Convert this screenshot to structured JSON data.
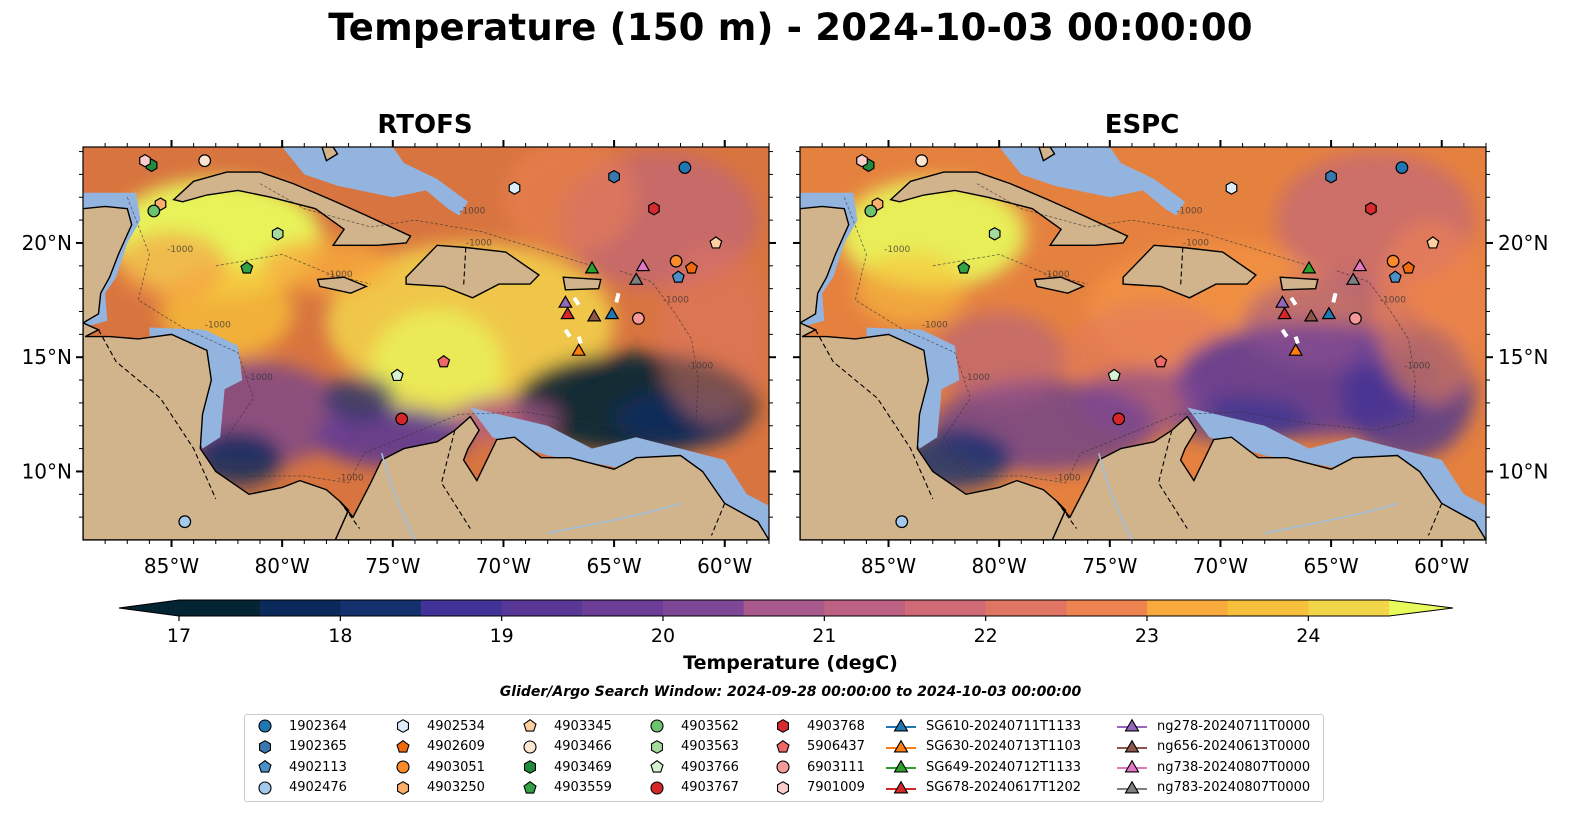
{
  "title": "Temperature (150 m) - 2024-10-03 00:00:00",
  "panels": [
    {
      "title": "RTOFS"
    },
    {
      "title": "ESPC"
    }
  ],
  "map": {
    "lon_range": [
      -89,
      -58
    ],
    "lat_range": [
      7,
      24.2
    ],
    "lon_ticks": [
      -85,
      -80,
      -75,
      -70,
      -65,
      -60
    ],
    "lon_tick_labels": [
      "85°W",
      "80°W",
      "75°W",
      "70°W",
      "65°W",
      "60°W"
    ],
    "lat_ticks": [
      10,
      15,
      20
    ],
    "lat_tick_labels": [
      "10°N",
      "15°N",
      "20°N"
    ],
    "land_color": "#d2b48c",
    "shelf_color": "#94b4e0",
    "contour_label": "-1000"
  },
  "colorbar": {
    "min": 17,
    "max": 24.5,
    "ticks": [
      17,
      18,
      19,
      20,
      21,
      22,
      23,
      24
    ],
    "tick_labels": [
      "17",
      "18",
      "19",
      "20",
      "21",
      "22",
      "23",
      "24"
    ],
    "label": "Temperature (degC)",
    "colors": [
      "#042333",
      "#0b2a5c",
      "#14306f",
      "#2c3395",
      "#403296",
      "#583796",
      "#6c3e97",
      "#7f4896",
      "#945193",
      "#a95a8d",
      "#bd6283",
      "#d06a76",
      "#e07563",
      "#ee8451",
      "#f59645",
      "#f8aa3c",
      "#f8bf3a",
      "#f3d54a",
      "#e8fa5b"
    ]
  },
  "search_window": "Glider/Argo Search Window: 2024-09-28 00:00:00 to 2024-10-03 00:00:00",
  "legend": [
    {
      "label": "1902364",
      "marker": "circle",
      "color": "#1f77b4"
    },
    {
      "label": "1902365",
      "marker": "hexagon",
      "color": "#3a78b0"
    },
    {
      "label": "4902113",
      "marker": "pentagon",
      "color": "#4b8fc7"
    },
    {
      "label": "4902476",
      "marker": "circle",
      "color": "#a3c9ec"
    },
    {
      "label": "4902534",
      "marker": "hexagon",
      "color": "#dcecfa"
    },
    {
      "label": "4902609",
      "marker": "pentagon",
      "color": "#f06b0e"
    },
    {
      "label": "4903051",
      "marker": "circle",
      "color": "#fb8b2a"
    },
    {
      "label": "4903250",
      "marker": "hexagon",
      "color": "#fcae6b"
    },
    {
      "label": "4903345",
      "marker": "pentagon",
      "color": "#fdd0a2"
    },
    {
      "label": "4903466",
      "marker": "circle",
      "color": "#fde6cf"
    },
    {
      "label": "4903469",
      "marker": "hexagon",
      "color": "#218a3c"
    },
    {
      "label": "4903559",
      "marker": "pentagon",
      "color": "#33a246"
    },
    {
      "label": "4903562",
      "marker": "circle",
      "color": "#6bc36d"
    },
    {
      "label": "4903563",
      "marker": "hexagon",
      "color": "#a6db9e"
    },
    {
      "label": "4903766",
      "marker": "pentagon",
      "color": "#d8f1d1"
    },
    {
      "label": "4903767",
      "marker": "circle",
      "color": "#d62728"
    },
    {
      "label": "4903768",
      "marker": "hexagon",
      "color": "#d72a2e"
    },
    {
      "label": "5906437",
      "marker": "pentagon",
      "color": "#f06868"
    },
    {
      "label": "6903111",
      "marker": "circle",
      "color": "#f69999"
    },
    {
      "label": "7901009",
      "marker": "hexagon",
      "color": "#fbcccc"
    },
    {
      "label": "SG610-20240711T1133",
      "marker": "triangle",
      "color": "#1f77b4"
    },
    {
      "label": "SG630-20240713T1103",
      "marker": "triangle",
      "color": "#ff7f0e"
    },
    {
      "label": "SG649-20240712T1133",
      "marker": "triangle",
      "color": "#2ca02c"
    },
    {
      "label": "SG678-20240617T1202",
      "marker": "triangle",
      "color": "#d62728"
    },
    {
      "label": "ng278-20240711T0000",
      "marker": "triangle",
      "color": "#9467bd"
    },
    {
      "label": "ng656-20240613T0000",
      "marker": "triangle",
      "color": "#8c564b"
    },
    {
      "label": "ng738-20240807T0000",
      "marker": "triangle",
      "color": "#e377c2"
    },
    {
      "label": "ng783-20240807T0000",
      "marker": "triangle",
      "color": "#7f7f7f"
    }
  ],
  "observations": [
    {
      "id": "1902364",
      "lon": -61.8,
      "lat": 23.3
    },
    {
      "id": "1902365",
      "lon": -65.0,
      "lat": 22.9
    },
    {
      "id": "4902113",
      "lon": -62.1,
      "lat": 18.5
    },
    {
      "id": "4902476",
      "lon": -84.4,
      "lat": 7.8
    },
    {
      "id": "4902534",
      "lon": -69.5,
      "lat": 22.4
    },
    {
      "id": "4902609",
      "lon": -61.5,
      "lat": 18.9
    },
    {
      "id": "4903051",
      "lon": -62.2,
      "lat": 19.2
    },
    {
      "id": "4903250",
      "lon": -85.5,
      "lat": 21.7
    },
    {
      "id": "4903345",
      "lon": -60.4,
      "lat": 20.0
    },
    {
      "id": "4903466",
      "lon": -83.5,
      "lat": 23.6
    },
    {
      "id": "4903469",
      "lon": -85.9,
      "lat": 23.4
    },
    {
      "id": "4903559",
      "lon": -81.6,
      "lat": 18.9
    },
    {
      "id": "4903562",
      "lon": -85.8,
      "lat": 21.4
    },
    {
      "id": "4903563",
      "lon": -80.2,
      "lat": 20.4
    },
    {
      "id": "4903766",
      "lon": -74.8,
      "lat": 14.2
    },
    {
      "id": "4903767",
      "lon": -74.6,
      "lat": 12.3
    },
    {
      "id": "4903768",
      "lon": -63.2,
      "lat": 21.5
    },
    {
      "id": "5906437",
      "lon": -72.7,
      "lat": 14.8
    },
    {
      "id": "6903111",
      "lon": -63.9,
      "lat": 16.7
    },
    {
      "id": "7901009",
      "lon": -86.2,
      "lat": 23.6
    },
    {
      "id": "SG610-20240711T1133",
      "lon": -65.1,
      "lat": 16.9
    },
    {
      "id": "SG630-20240713T1103",
      "lon": -66.6,
      "lat": 15.3
    },
    {
      "id": "SG649-20240712T1133",
      "lon": -66.0,
      "lat": 18.9
    },
    {
      "id": "SG678-20240617T1202",
      "lon": -67.1,
      "lat": 16.9
    },
    {
      "id": "ng278-20240711T0000",
      "lon": -67.2,
      "lat": 17.4
    },
    {
      "id": "ng656-20240613T0000",
      "lon": -65.9,
      "lat": 16.8
    },
    {
      "id": "ng738-20240807T0000",
      "lon": -63.7,
      "lat": 19.0
    },
    {
      "id": "ng783-20240807T0000",
      "lon": -64.0,
      "lat": 18.4
    }
  ]
}
